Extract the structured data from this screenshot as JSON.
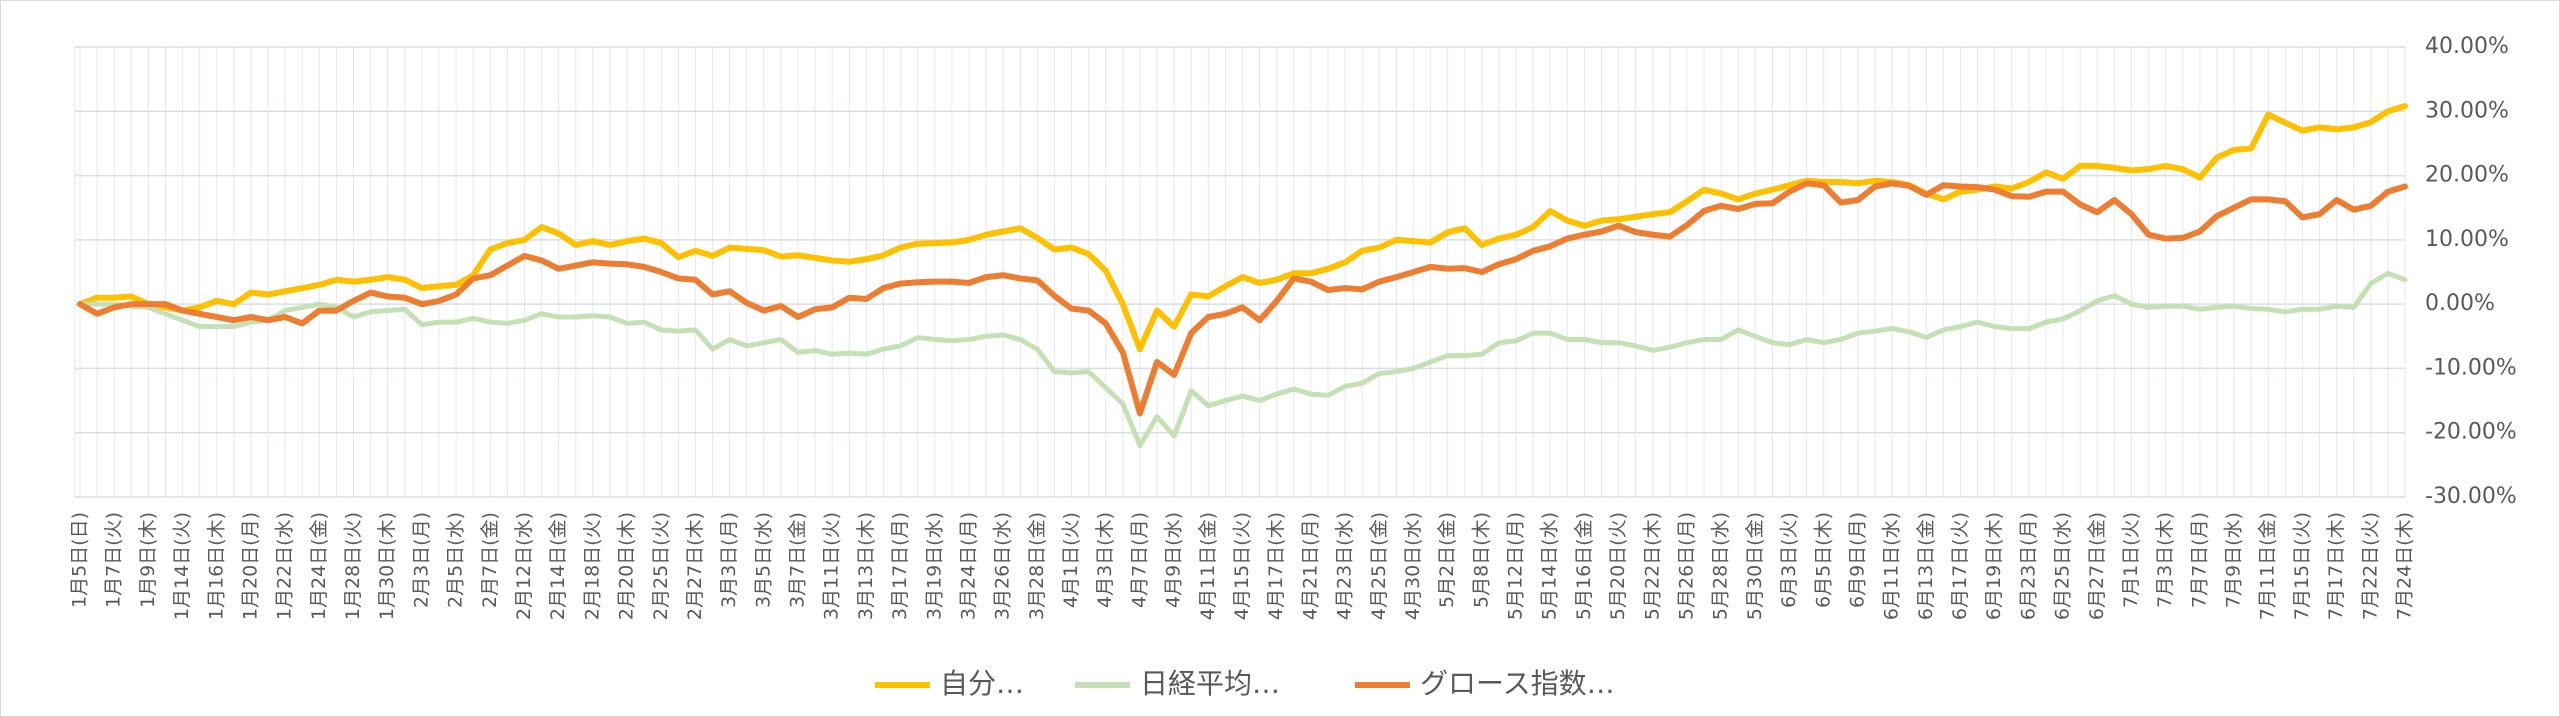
{
  "chart_data": {
    "type": "line",
    "categories": [
      "1月5日(日)",
      null,
      "1月7日(火)",
      null,
      "1月9日(木)",
      null,
      "1月14日(火)",
      null,
      "1月16日(木)",
      null,
      "1月20日(月)",
      null,
      "1月22日(水)",
      null,
      "1月24日(金)",
      null,
      "1月28日(火)",
      null,
      "1月30日(木)",
      null,
      "2月3日(月)",
      null,
      "2月5日(水)",
      null,
      "2月7日(金)",
      null,
      "2月12日(水)",
      null,
      "2月14日(金)",
      null,
      "2月18日(火)",
      null,
      "2月20日(木)",
      null,
      "2月25日(火)",
      null,
      "2月27日(木)",
      null,
      "3月3日(月)",
      null,
      "3月5日(水)",
      null,
      "3月7日(金)",
      null,
      "3月11日(火)",
      null,
      "3月13日(木)",
      null,
      "3月17日(月)",
      null,
      "3月19日(水)",
      null,
      "3月24日(月)",
      null,
      "3月26日(水)",
      null,
      "3月28日(金)",
      null,
      "4月1日(火)",
      null,
      "4月3日(木)",
      null,
      "4月7日(月)",
      null,
      "4月9日(水)",
      null,
      "4月11日(金)",
      null,
      "4月15日(火)",
      null,
      "4月17日(木)",
      null,
      "4月21日(月)",
      null,
      "4月23日(水)",
      null,
      "4月25日(金)",
      null,
      "4月30日(水)",
      null,
      "5月2日(金)",
      null,
      "5月8日(木)",
      null,
      "5月12日(月)",
      null,
      "5月14日(水)",
      null,
      "5月16日(金)",
      null,
      "5月20日(火)",
      null,
      "5月22日(木)",
      null,
      "5月26日(月)",
      null,
      "5月28日(水)",
      null,
      "5月30日(金)",
      null,
      "6月3日(火)",
      null,
      "6月5日(木)",
      null,
      "6月9日(月)",
      null,
      "6月11日(水)",
      null,
      "6月13日(金)",
      null,
      "6月17日(火)",
      null,
      "6月19日(木)",
      null,
      "6月23日(月)",
      null,
      "6月25日(水)",
      null,
      "6月27日(金)",
      null,
      "7月1日(火)",
      null,
      "7月3日(木)",
      null,
      "7月7日(月)",
      null,
      "7月9日(水)",
      null,
      "7月11日(金)",
      null,
      "7月15日(火)",
      null,
      "7月17日(木)",
      null,
      "7月22日(火)",
      null,
      "7月24日(木)"
    ],
    "series": [
      {
        "name": "自分…",
        "color": "#ffc000",
        "values": [
          0,
          1,
          1,
          1.2,
          0,
          -0.5,
          -1,
          -0.5,
          0.5,
          0,
          1.8,
          1.5,
          2,
          2.5,
          3,
          3.8,
          3.5,
          3.8,
          4.2,
          3.8,
          2.5,
          2.8,
          3,
          4.5,
          8.5,
          9.5,
          10,
          12,
          11,
          9.2,
          9.8,
          9.2,
          9.8,
          10.2,
          9.5,
          7.3,
          8.3,
          7.5,
          8.8,
          8.6,
          8.4,
          7.4,
          7.6,
          7.2,
          6.8,
          6.6,
          7,
          7.6,
          8.8,
          9.4,
          9.5,
          9.6,
          10,
          10.8,
          11.3,
          11.8,
          10.3,
          8.5,
          8.8,
          7.8,
          5.2,
          0,
          -7,
          -1,
          -3.5,
          1.5,
          1.2,
          2.8,
          4.2,
          3.3,
          3.8,
          4.8,
          4.8,
          5.5,
          6.5,
          8.3,
          8.8,
          10,
          9.8,
          9.6,
          11.2,
          11.8,
          9.2,
          10.2,
          10.8,
          12,
          14.5,
          13,
          12.2,
          13,
          13.2,
          13.6,
          14,
          14.3,
          16,
          17.8,
          17.2,
          16.3,
          17.2,
          17.8,
          18.5,
          19.2,
          19,
          19,
          18.8,
          19.2,
          19,
          18.5,
          17.2,
          16.3,
          17.5,
          17.8,
          18.3,
          18,
          19,
          20.5,
          19.5,
          21.5,
          21.5,
          21.2,
          20.8,
          21,
          21.5,
          21,
          19.7,
          22.8,
          24,
          24.2,
          29.5,
          28.2,
          27,
          27.5,
          27.2,
          27.5,
          28.3,
          30,
          30.8
        ]
      },
      {
        "name": "日経平均…",
        "color": "#c5e0b4",
        "values": [
          0,
          0,
          0,
          -0.3,
          -0.5,
          -1.5,
          -2.5,
          -3.5,
          -3.5,
          -3.5,
          -2.8,
          -2.5,
          -1,
          -0.5,
          0,
          -0.5,
          -2,
          -1.2,
          -1,
          -0.8,
          -3.2,
          -2.8,
          -2.8,
          -2.2,
          -2.8,
          -3,
          -2.5,
          -1.5,
          -2,
          -2,
          -1.8,
          -2,
          -3,
          -2.8,
          -4,
          -4.2,
          -4,
          -7,
          -5.5,
          -6.5,
          -6,
          -5.5,
          -7.5,
          -7.2,
          -7.8,
          -7.6,
          -7.8,
          -7,
          -6.5,
          -5.2,
          -5.5,
          -5.7,
          -5.5,
          -5,
          -4.8,
          -5.5,
          -7,
          -10.5,
          -10.7,
          -10.5,
          -13,
          -15.5,
          -22,
          -17.5,
          -20.5,
          -13.5,
          -15.8,
          -15,
          -14.3,
          -15,
          -14,
          -13.2,
          -14,
          -14.2,
          -12.8,
          -12.3,
          -10.8,
          -10.5,
          -10,
          -9,
          -8,
          -8,
          -7.8,
          -6,
          -5.7,
          -4.5,
          -4.5,
          -5.5,
          -5.5,
          -6,
          -6,
          -6.5,
          -7.2,
          -6.7,
          -6,
          -5.5,
          -5.5,
          -4,
          -5,
          -6,
          -6.3,
          -5.5,
          -6,
          -5.5,
          -4.5,
          -4.2,
          -3.8,
          -4.3,
          -5.2,
          -4,
          -3.5,
          -2.8,
          -3.5,
          -3.8,
          -3.8,
          -2.8,
          -2.3,
          -1,
          0.5,
          1.3,
          0,
          -0.5,
          -0.3,
          -0.3,
          -0.8,
          -0.5,
          -0.3,
          -0.7,
          -0.8,
          -1.2,
          -0.8,
          -0.8,
          -0.3,
          -0.5,
          3.2,
          4.8,
          3.8
        ]
      },
      {
        "name": "グロース指数…",
        "color": "#ed7d31",
        "values": [
          0,
          -1.5,
          -0.5,
          0,
          0,
          0,
          -1,
          -1.5,
          -2,
          -2.5,
          -2,
          -2.5,
          -2,
          -3,
          -1,
          -1,
          0.5,
          1.8,
          1.2,
          1,
          0,
          0.5,
          1.5,
          4,
          4.5,
          6,
          7.5,
          6.8,
          5.5,
          6,
          6.5,
          6.3,
          6.2,
          5.8,
          5,
          4,
          3.8,
          1.5,
          2,
          0.2,
          -1,
          -0.3,
          -2,
          -0.8,
          -0.5,
          1,
          0.8,
          2.5,
          3.2,
          3.4,
          3.5,
          3.5,
          3.3,
          4.2,
          4.5,
          4,
          3.7,
          1.3,
          -0.7,
          -1,
          -3,
          -7.5,
          -17,
          -9,
          -11,
          -4.5,
          -2,
          -1.5,
          -0.5,
          -2.5,
          0.5,
          4,
          3.5,
          2.2,
          2.5,
          2.3,
          3.5,
          4.2,
          5,
          5.8,
          5.5,
          5.6,
          5,
          6.2,
          7,
          8.3,
          9,
          10.2,
          10.8,
          11.3,
          12.2,
          11.2,
          10.8,
          10.5,
          12.3,
          14.5,
          15.3,
          14.8,
          15.6,
          15.7,
          17.5,
          18.8,
          18.5,
          15.8,
          16.2,
          18.3,
          18.8,
          18.4,
          17,
          18.5,
          18.3,
          18.2,
          17.8,
          16.8,
          16.7,
          17.5,
          17.5,
          15.5,
          14.3,
          16.2,
          14,
          10.8,
          10.2,
          10.3,
          11.3,
          13.7,
          15,
          16.3,
          16.3,
          16,
          13.5,
          14,
          16.2,
          14.7,
          15.3,
          17.5,
          18.3
        ]
      }
    ],
    "ylim": [
      -30,
      40
    ],
    "yticks": [
      {
        "value": -30,
        "label": "-30.00%"
      },
      {
        "value": -20,
        "label": "-20.00%"
      },
      {
        "value": -10,
        "label": "-10.00%"
      },
      {
        "value": 0,
        "label": "0.00%"
      },
      {
        "value": 10,
        "label": "10.00%"
      },
      {
        "value": 20,
        "label": "20.00%"
      },
      {
        "value": 30,
        "label": "30.00%"
      },
      {
        "value": 40,
        "label": "40.00%"
      }
    ],
    "grid": true,
    "legend": "bottom"
  }
}
